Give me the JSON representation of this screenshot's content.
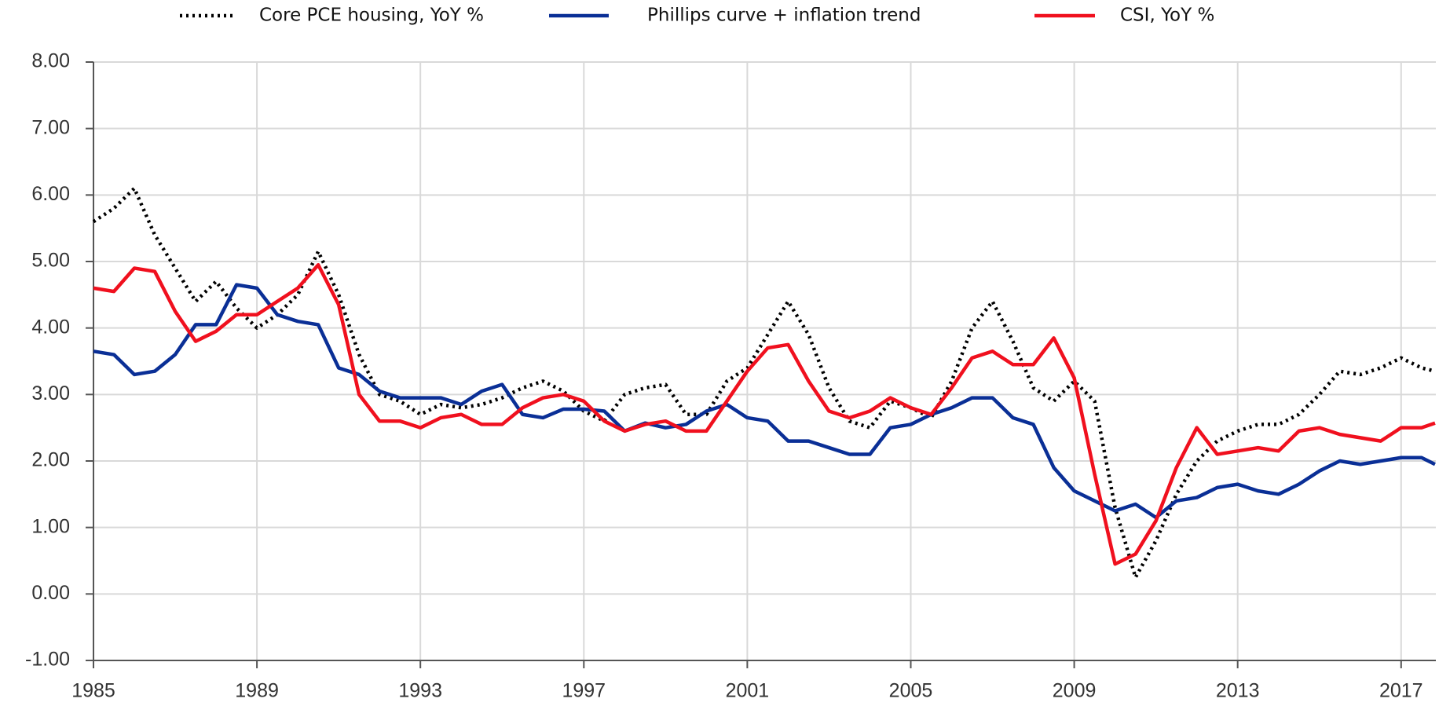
{
  "chart_data": {
    "type": "line",
    "x": [
      1985,
      1985.5,
      1986,
      1986.5,
      1987,
      1987.5,
      1988,
      1988.5,
      1989,
      1989.5,
      1990,
      1990.5,
      1991,
      1991.5,
      1992,
      1992.5,
      1993,
      1993.5,
      1994,
      1994.5,
      1995,
      1995.5,
      1996,
      1996.5,
      1997,
      1997.5,
      1998,
      1998.5,
      1999,
      1999.5,
      2000,
      2000.5,
      2001,
      2001.5,
      2002,
      2002.5,
      2003,
      2003.5,
      2004,
      2004.5,
      2005,
      2005.5,
      2006,
      2006.5,
      2007,
      2007.5,
      2008,
      2008.5,
      2009,
      2009.5,
      2010,
      2010.5,
      2011,
      2011.5,
      2012,
      2012.5,
      2013,
      2013.5,
      2014,
      2014.5,
      2015,
      2015.5,
      2016,
      2016.5,
      2017,
      2017.5,
      2017.83
    ],
    "series": [
      {
        "name": "Core PCE housing, YoY %",
        "color": "#000000",
        "line_style": "dotted",
        "values": [
          5.6,
          5.8,
          6.1,
          5.4,
          4.9,
          4.4,
          4.7,
          4.3,
          4.0,
          4.2,
          4.5,
          5.15,
          4.5,
          3.6,
          3.0,
          2.9,
          2.7,
          2.85,
          2.8,
          2.85,
          2.95,
          3.1,
          3.2,
          3.05,
          2.75,
          2.6,
          3.0,
          3.1,
          3.15,
          2.7,
          2.7,
          3.2,
          3.4,
          3.9,
          4.4,
          3.9,
          3.1,
          2.6,
          2.5,
          2.9,
          2.8,
          2.65,
          3.2,
          4.0,
          4.4,
          3.8,
          3.1,
          2.9,
          3.2,
          2.9,
          1.3,
          0.25,
          0.8,
          1.5,
          2.0,
          2.3,
          2.45,
          2.55,
          2.55,
          2.7,
          3.0,
          3.35,
          3.3,
          3.4,
          3.55,
          3.4,
          3.35
        ]
      },
      {
        "name": "Phillips curve + inflation trend",
        "color": "#0a2f96",
        "line_style": "solid",
        "values": [
          3.65,
          3.6,
          3.3,
          3.35,
          3.6,
          4.05,
          4.05,
          4.65,
          4.6,
          4.2,
          4.1,
          4.05,
          3.4,
          3.3,
          3.05,
          2.95,
          2.95,
          2.95,
          2.85,
          3.05,
          3.15,
          2.7,
          2.65,
          2.78,
          2.78,
          2.75,
          2.45,
          2.57,
          2.5,
          2.55,
          2.75,
          2.85,
          2.65,
          2.6,
          2.3,
          2.3,
          2.2,
          2.1,
          2.1,
          2.5,
          2.55,
          2.7,
          2.8,
          2.95,
          2.95,
          2.65,
          2.55,
          1.9,
          1.55,
          1.4,
          1.25,
          1.35,
          1.15,
          1.4,
          1.45,
          1.6,
          1.65,
          1.55,
          1.5,
          1.65,
          1.85,
          2.0,
          1.95,
          2.0,
          2.05,
          2.05,
          1.95
        ]
      },
      {
        "name": "CSI, YoY %",
        "color": "#f0101e",
        "line_style": "solid",
        "values": [
          4.6,
          4.55,
          4.9,
          4.85,
          4.25,
          3.8,
          3.95,
          4.2,
          4.2,
          4.4,
          4.6,
          4.95,
          4.35,
          3.0,
          2.6,
          2.6,
          2.5,
          2.65,
          2.7,
          2.55,
          2.55,
          2.8,
          2.95,
          3.0,
          2.9,
          2.6,
          2.45,
          2.55,
          2.6,
          2.45,
          2.45,
          2.9,
          3.35,
          3.7,
          3.75,
          3.2,
          2.75,
          2.65,
          2.75,
          2.95,
          2.8,
          2.7,
          3.1,
          3.55,
          3.65,
          3.45,
          3.45,
          3.85,
          3.25,
          1.8,
          0.45,
          0.6,
          1.1,
          1.9,
          2.5,
          2.1,
          2.15,
          2.2,
          2.15,
          2.45,
          2.5,
          2.4,
          2.35,
          2.3,
          2.5,
          2.5,
          2.57
        ]
      }
    ],
    "xlim": [
      1985,
      2017.85
    ],
    "xticks": [
      1985,
      1989,
      1993,
      1997,
      2001,
      2005,
      2009,
      2013,
      2017
    ],
    "ylim": [
      -1,
      8
    ],
    "yticks": [
      {
        "value": -1,
        "label": "-1.00"
      },
      {
        "value": 0,
        "label": "0.00"
      },
      {
        "value": 1,
        "label": "1.00"
      },
      {
        "value": 2,
        "label": "2.00"
      },
      {
        "value": 3,
        "label": "3.00"
      },
      {
        "value": 4,
        "label": "4.00"
      },
      {
        "value": 5,
        "label": "5.00"
      },
      {
        "value": 6,
        "label": "6.00"
      },
      {
        "value": 7,
        "label": "7.00"
      },
      {
        "value": 8,
        "label": "8.00"
      }
    ],
    "grid": true,
    "legend": "top"
  }
}
